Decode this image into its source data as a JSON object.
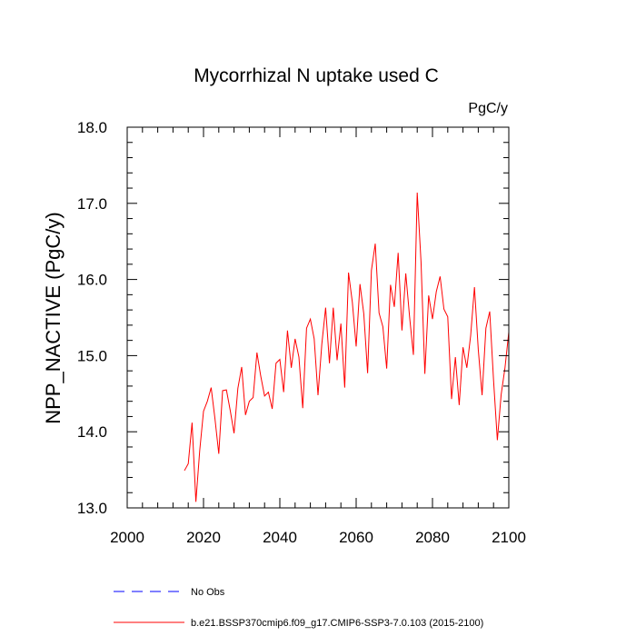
{
  "chart_data": {
    "type": "line",
    "title": "Mycorrhizal N uptake used C",
    "units": "PgC/y",
    "xlabel": "",
    "ylabel": "NPP_NACTIVE  (PgC/y)",
    "xlim": [
      2000,
      2100
    ],
    "ylim": [
      13.0,
      18.0
    ],
    "x_ticks": [
      2000,
      2020,
      2040,
      2060,
      2080,
      2100
    ],
    "x_tick_labels": [
      "2000",
      "2020",
      "2040",
      "2060",
      "2080",
      "2100"
    ],
    "y_ticks": [
      13.0,
      14.0,
      15.0,
      16.0,
      17.0,
      18.0
    ],
    "y_tick_labels": [
      "13.0",
      "14.0",
      "15.0",
      "16.0",
      "17.0",
      "18.0"
    ],
    "x_minor_step": 4,
    "y_minor_step": 0.2,
    "grid": false,
    "legend_position": "bottom",
    "series": [
      {
        "name": "No Obs",
        "color": "#0000ff",
        "dash": "dashed",
        "values": []
      },
      {
        "name": "b.e21.BSSP370cmip6.f09_g17.CMIP6-SSP3-7.0.103 (2015-2100)",
        "color": "#ff0000",
        "dash": "solid",
        "x": [
          2015,
          2016,
          2017,
          2018,
          2019,
          2020,
          2021,
          2022,
          2023,
          2024,
          2025,
          2026,
          2027,
          2028,
          2029,
          2030,
          2031,
          2032,
          2033,
          2034,
          2035,
          2036,
          2037,
          2038,
          2039,
          2040,
          2041,
          2042,
          2043,
          2044,
          2045,
          2046,
          2047,
          2048,
          2049,
          2050,
          2051,
          2052,
          2053,
          2054,
          2055,
          2056,
          2057,
          2058,
          2059,
          2060,
          2061,
          2062,
          2063,
          2064,
          2065,
          2066,
          2067,
          2068,
          2069,
          2070,
          2071,
          2072,
          2073,
          2074,
          2075,
          2076,
          2077,
          2078,
          2079,
          2080,
          2081,
          2082,
          2083,
          2084,
          2085,
          2086,
          2087,
          2088,
          2089,
          2090,
          2091,
          2092,
          2093,
          2094,
          2095,
          2096,
          2097,
          2098,
          2099,
          2100
        ],
        "values": [
          13.49,
          13.58,
          14.12,
          13.08,
          13.75,
          14.27,
          14.4,
          14.58,
          14.17,
          13.71,
          14.54,
          14.55,
          14.28,
          13.98,
          14.57,
          14.85,
          14.22,
          14.4,
          14.45,
          15.04,
          14.73,
          14.47,
          14.52,
          14.3,
          14.9,
          14.95,
          14.52,
          15.33,
          14.84,
          15.22,
          14.98,
          14.31,
          15.36,
          15.48,
          15.22,
          14.48,
          15.15,
          15.63,
          14.9,
          15.63,
          14.94,
          15.42,
          14.58,
          16.09,
          15.7,
          15.12,
          15.94,
          15.55,
          14.77,
          16.12,
          16.47,
          15.56,
          15.38,
          14.83,
          15.93,
          15.64,
          16.35,
          15.33,
          16.08,
          15.51,
          15.01,
          17.14,
          16.23,
          14.76,
          15.79,
          15.48,
          15.84,
          16.04,
          15.61,
          15.51,
          14.43,
          14.98,
          14.35,
          15.11,
          14.84,
          15.26,
          15.9,
          15.08,
          14.48,
          15.36,
          15.58,
          14.68,
          13.89,
          14.49,
          14.84,
          15.31
        ]
      }
    ]
  }
}
